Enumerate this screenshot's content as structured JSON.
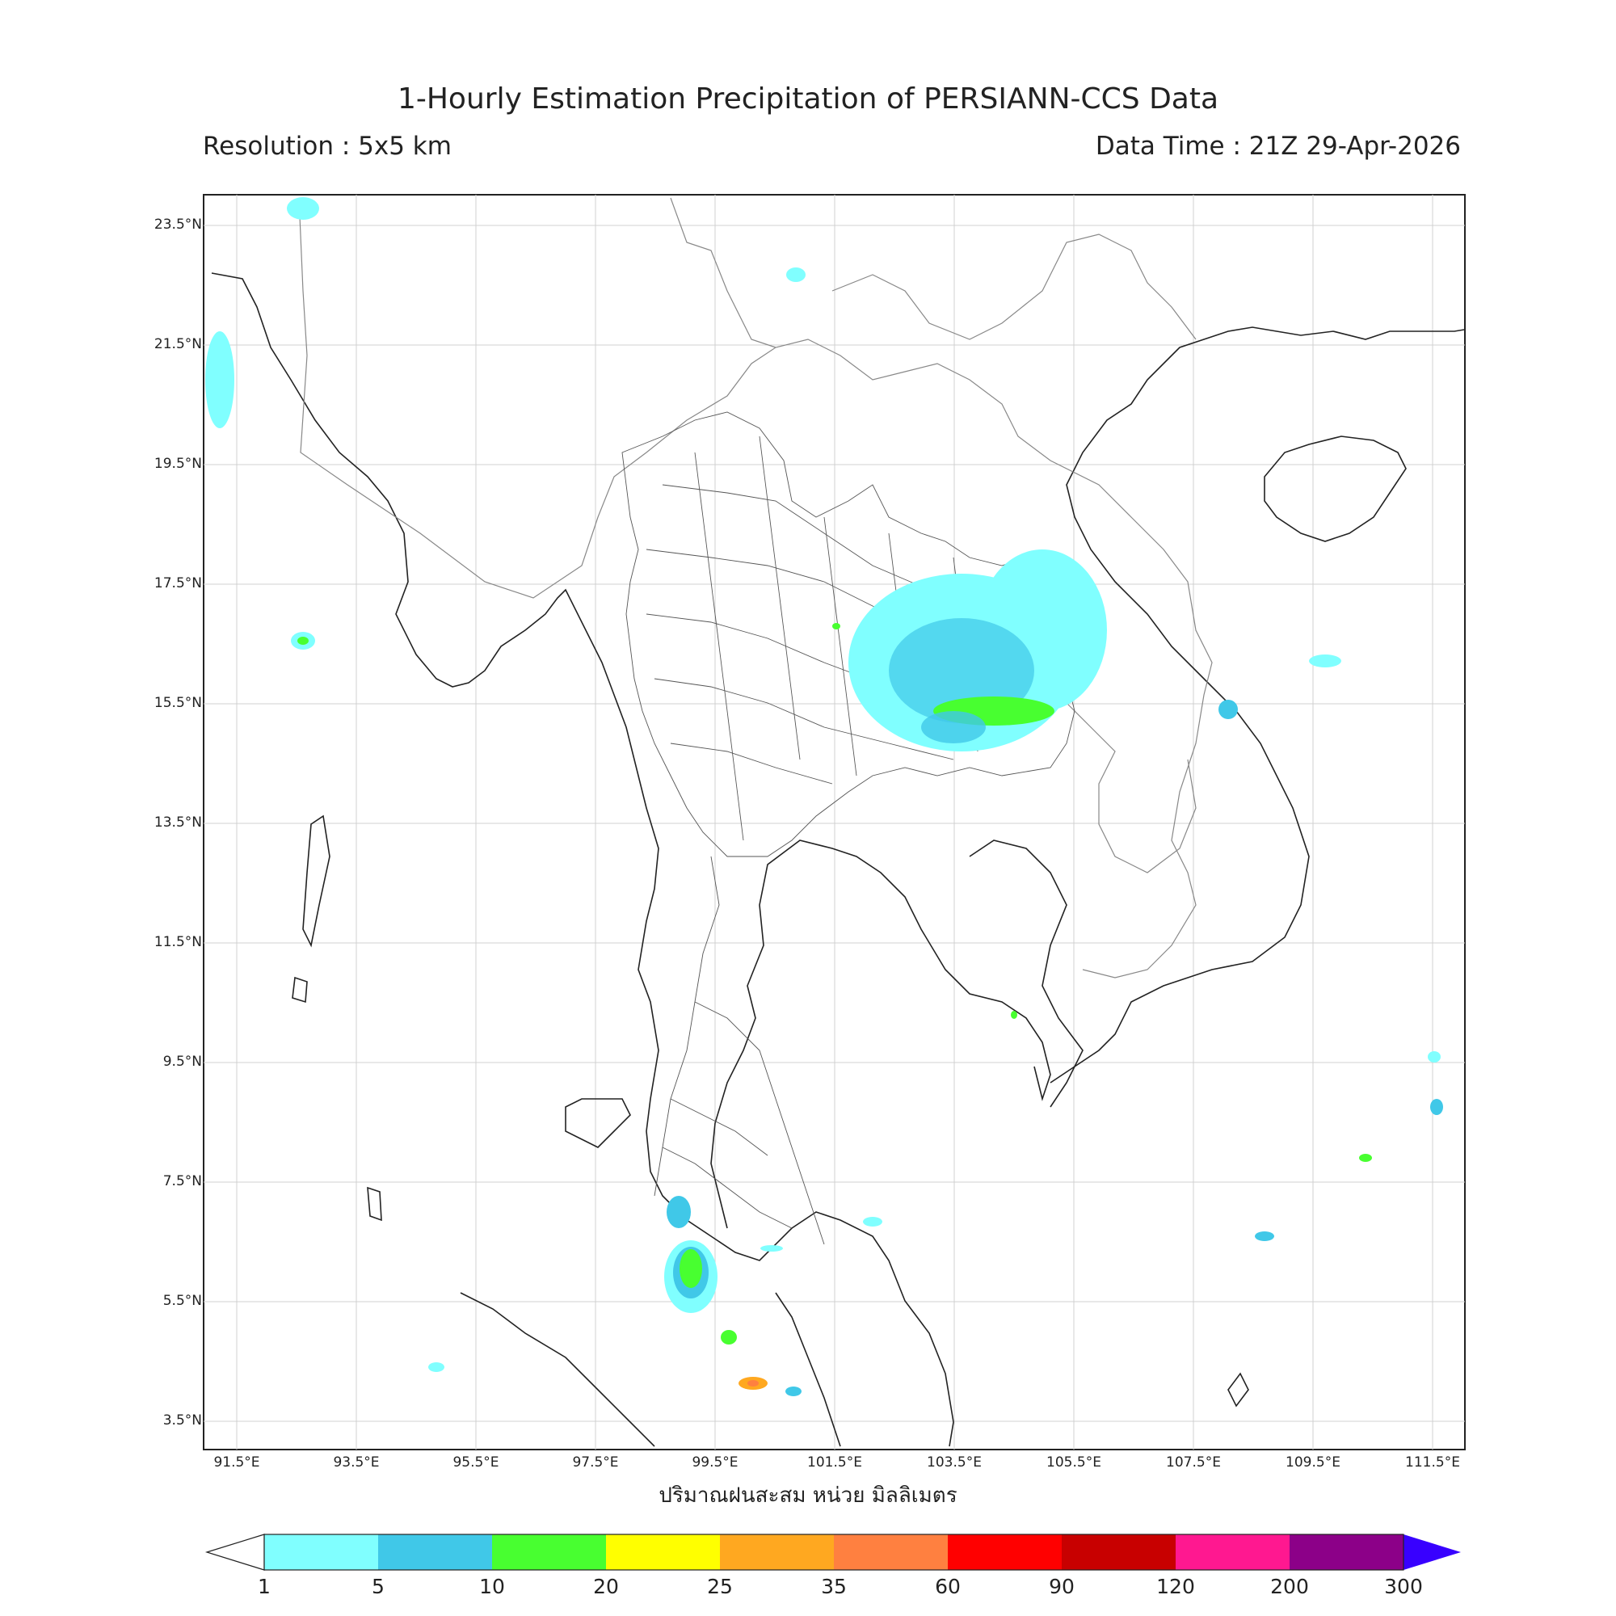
{
  "header": {
    "title": "1-Hourly Estimation Precipitation of PERSIANN-CCS Data",
    "resolution": "Resolution : 5x5 km",
    "data_time": "Data Time : 21Z 29-Apr-2026"
  },
  "axes": {
    "lat_ticks": [
      "23.5°N",
      "21.5°N",
      "19.5°N",
      "17.5°N",
      "15.5°N",
      "13.5°N",
      "11.5°N",
      "9.5°N",
      "7.5°N",
      "5.5°N",
      "3.5°N"
    ],
    "lon_ticks": [
      "91.5°E",
      "93.5°E",
      "95.5°E",
      "97.5°E",
      "99.5°E",
      "101.5°E",
      "103.5°E",
      "105.5°E",
      "107.5°E",
      "109.5°E",
      "111.5°E"
    ],
    "xlabel": "ปริมาณฝนสะสม หน่วย มิลลิเมตร"
  },
  "colorbar": {
    "labels": [
      "1",
      "5",
      "10",
      "20",
      "25",
      "35",
      "60",
      "90",
      "120",
      "200",
      "300"
    ],
    "colors": [
      "#80FFFF",
      "#40C8E8",
      "#48FF30",
      "#FFFF00",
      "#FFA820",
      "#FF8040",
      "#FF0000",
      "#C80000",
      "#FF1890",
      "#8C0088",
      "#3800FF"
    ]
  }
}
